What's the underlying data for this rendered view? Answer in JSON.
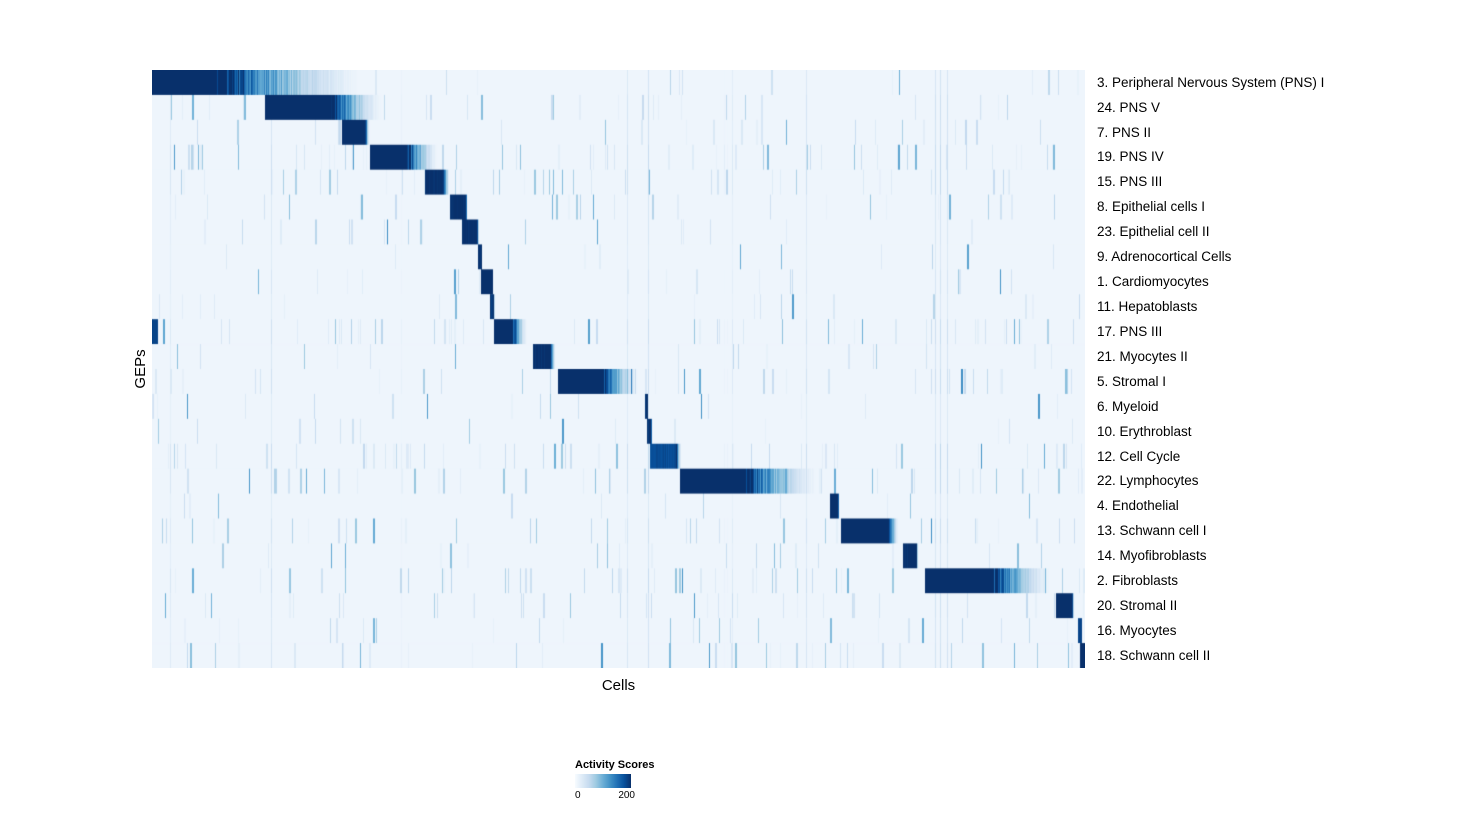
{
  "figure": {
    "y_axis_label": "GEPs",
    "x_axis_label": "Cells"
  },
  "legend": {
    "title": "Activity Scores",
    "min_label": "0",
    "max_label": "200"
  },
  "chart_data": {
    "type": "heatmap",
    "title": "",
    "xlabel": "Cells",
    "ylabel": "GEPs",
    "colormap": "Blues",
    "colormap_stops": [
      "#f7fbff",
      "#deebf7",
      "#c6dbef",
      "#9ecae1",
      "#6baed6",
      "#4292c6",
      "#2171b5",
      "#08519c",
      "#08306b"
    ],
    "colorbar": {
      "title": "Activity Scores",
      "min": 0,
      "max": 200
    },
    "x_tick_labels": [],
    "n_rows": 24,
    "noise": {
      "base": 9,
      "streak_probability": 0.055,
      "column_streak_probability": 0.015,
      "seed": 42
    },
    "rows": [
      {
        "label": "3. Peripheral Nervous System (PNS) I",
        "noise": 0.5,
        "block": {
          "start": 0.0,
          "peak_end": 0.068,
          "fade_end": 0.25,
          "peak": 235
        }
      },
      {
        "label": "24. PNS V",
        "noise": 0.7,
        "block": {
          "start": 0.121,
          "peak_end": 0.191,
          "fade_end": 0.255,
          "peak": 225
        }
      },
      {
        "label": "7. PNS II",
        "noise": 0.6,
        "block": {
          "start": 0.204,
          "peak_end": 0.228,
          "fade_end": 0.234,
          "peak": 215
        }
      },
      {
        "label": "19. PNS IV",
        "noise": 0.9,
        "block": {
          "start": 0.234,
          "peak_end": 0.272,
          "fade_end": 0.312,
          "peak": 215
        }
      },
      {
        "label": "15. PNS III",
        "noise": 0.9,
        "block": {
          "start": 0.293,
          "peak_end": 0.312,
          "fade_end": 0.319,
          "peak": 205
        }
      },
      {
        "label": "8. Epithelial cells I",
        "noise": 0.4,
        "block": {
          "start": 0.319,
          "peak_end": 0.337,
          "fade_end": 0.338,
          "peak": 205
        }
      },
      {
        "label": "23. Epithelial cell II",
        "noise": 0.4,
        "block": {
          "start": 0.332,
          "peak_end": 0.348,
          "fade_end": 0.35,
          "peak": 205
        }
      },
      {
        "label": "9. Adrenocortical Cells",
        "noise": 0.3,
        "block": {
          "start": 0.349,
          "peak_end": 0.353,
          "fade_end": 0.354,
          "peak": 195
        }
      },
      {
        "label": "1. Cardiomyocytes",
        "noise": 0.5,
        "block": {
          "start": 0.353,
          "peak_end": 0.364,
          "fade_end": 0.366,
          "peak": 215
        }
      },
      {
        "label": "11. Hepatoblasts",
        "noise": 0.3,
        "block": {
          "start": 0.362,
          "peak_end": 0.366,
          "fade_end": 0.368,
          "peak": 195
        }
      },
      {
        "label": "17. PNS III",
        "noise": 0.8,
        "block": {
          "start": 0.367,
          "peak_end": 0.386,
          "fade_end": 0.405,
          "peak": 215
        },
        "extra_blocks": [
          {
            "start": 0.0,
            "end": 0.005,
            "value": 185
          }
        ]
      },
      {
        "label": "21. Myocytes II",
        "noise": 0.5,
        "block": {
          "start": 0.408,
          "peak_end": 0.427,
          "fade_end": 0.433,
          "peak": 205
        }
      },
      {
        "label": "5. Stromal I",
        "noise": 0.8,
        "block": {
          "start": 0.435,
          "peak_end": 0.48,
          "fade_end": 0.528,
          "peak": 225
        }
      },
      {
        "label": "6. Myeloid",
        "noise": 0.3,
        "block": {
          "start": 0.528,
          "peak_end": 0.531,
          "fade_end": 0.532,
          "peak": 200
        }
      },
      {
        "label": "10. Erythroblast",
        "noise": 0.3,
        "block": {
          "start": 0.531,
          "peak_end": 0.535,
          "fade_end": 0.536,
          "peak": 200
        }
      },
      {
        "label": "12. Cell Cycle",
        "noise": 1.0,
        "block": {
          "start": 0.534,
          "peak_end": 0.562,
          "fade_end": 0.568,
          "peak": 180
        }
      },
      {
        "label": "22. Lymphocytes",
        "noise": 0.9,
        "block": {
          "start": 0.566,
          "peak_end": 0.63,
          "fade_end": 0.727,
          "peak": 235
        }
      },
      {
        "label": "4. Endothelial",
        "noise": 0.3,
        "block": {
          "start": 0.727,
          "peak_end": 0.735,
          "fade_end": 0.736,
          "peak": 215
        }
      },
      {
        "label": "13. Schwann cell I",
        "noise": 0.7,
        "block": {
          "start": 0.738,
          "peak_end": 0.789,
          "fade_end": 0.802,
          "peak": 225
        }
      },
      {
        "label": "14. Myofibroblasts",
        "noise": 0.4,
        "block": {
          "start": 0.805,
          "peak_end": 0.819,
          "fade_end": 0.821,
          "peak": 205
        }
      },
      {
        "label": "2. Fibroblasts",
        "noise": 0.9,
        "block": {
          "start": 0.828,
          "peak_end": 0.898,
          "fade_end": 0.975,
          "peak": 225
        }
      },
      {
        "label": "20. Stromal II",
        "noise": 0.6,
        "block": {
          "start": 0.969,
          "peak_end": 0.986,
          "fade_end": 0.988,
          "peak": 215
        }
      },
      {
        "label": "16. Myocytes",
        "noise": 0.5,
        "block": {
          "start": 0.992,
          "peak_end": 0.997,
          "fade_end": 0.997,
          "peak": 185
        }
      },
      {
        "label": "18. Schwann cell II",
        "noise": 0.6,
        "block": {
          "start": 0.995,
          "peak_end": 1.0,
          "fade_end": 1.0,
          "peak": 225
        }
      }
    ]
  }
}
